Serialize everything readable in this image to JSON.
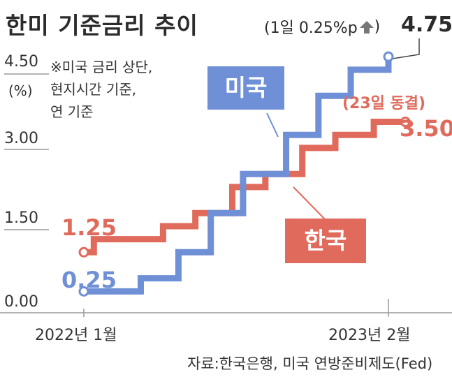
{
  "header": {
    "title": "한미 기준금리 추이",
    "subtitle": "(1일 0.25%p",
    "subtitle_value": "4.75"
  },
  "notes": {
    "unit": "(%)",
    "footnote": "※미국 금리 상단,\n현지시간 기준,\n연 기준",
    "freeze_note": "(23일 동결)"
  },
  "legend": {
    "us": "미국",
    "kr": "한국"
  },
  "source": "자료:한국은행, 미국 연방준비제도(Fed)",
  "colors": {
    "us": "#6f8fd6",
    "kr": "#e06b5c",
    "axis": "#9a9a9a",
    "text": "#2b2b2b"
  },
  "chart_data": {
    "type": "line",
    "step": true,
    "title": "한미 기준금리 추이",
    "xlabel": "",
    "ylabel": "(%)",
    "ylim": [
      0,
      4.5
    ],
    "yticks": [
      "0.00",
      "1.50",
      "3.00",
      "4.50"
    ],
    "xtick_labels": [
      "2022년 1월",
      "2023년 2월"
    ],
    "x_range": [
      "2022-01",
      "2023-02"
    ],
    "series": [
      {
        "name": "미국",
        "color": "#6f8fd6",
        "dates": [
          "2022-01-01",
          "2022-03-16",
          "2022-05-04",
          "2022-06-15",
          "2022-07-27",
          "2022-09-21",
          "2022-11-02",
          "2022-12-14",
          "2023-02-01"
        ],
        "values": [
          0.25,
          0.5,
          1.0,
          1.75,
          2.5,
          3.25,
          4.0,
          4.5,
          4.75
        ],
        "start_label": "0.25",
        "end_label": "4.75"
      },
      {
        "name": "한국",
        "color": "#e06b5c",
        "dates": [
          "2022-01-01",
          "2022-01-14",
          "2022-04-14",
          "2022-05-26",
          "2022-07-13",
          "2022-08-25",
          "2022-10-12",
          "2022-11-24",
          "2023-01-13",
          "2023-02-23"
        ],
        "values": [
          1.0,
          1.25,
          1.5,
          1.75,
          2.25,
          2.5,
          3.0,
          3.25,
          3.5,
          3.5
        ],
        "start_label": "1.25",
        "end_label": "3.50"
      }
    ]
  }
}
